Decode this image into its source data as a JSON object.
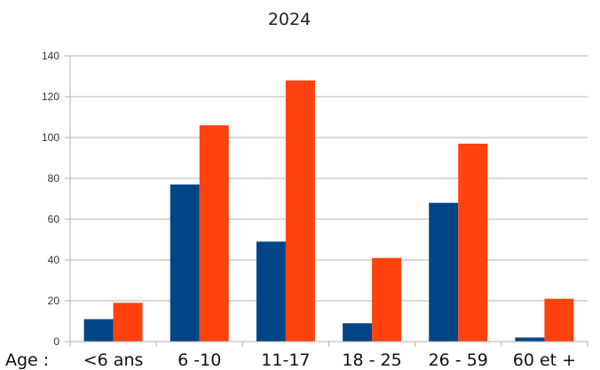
{
  "chart_data": {
    "type": "bar",
    "title": "2024",
    "xlabel": "Age :",
    "ylabel": "",
    "categories": [
      "<6 ans",
      "6 -10",
      "11-17",
      "18 - 25",
      "26 - 59",
      "60 et +"
    ],
    "series": [
      {
        "color": "#004586",
        "values": [
          11,
          77,
          49,
          9,
          68,
          2
        ]
      },
      {
        "color": "#ff420e",
        "values": [
          19,
          106,
          128,
          41,
          97,
          21
        ]
      }
    ],
    "ylim": [
      0,
      140
    ],
    "yticks": [
      0,
      20,
      40,
      60,
      80,
      100,
      120,
      140
    ],
    "grid": true,
    "legend": "none"
  }
}
